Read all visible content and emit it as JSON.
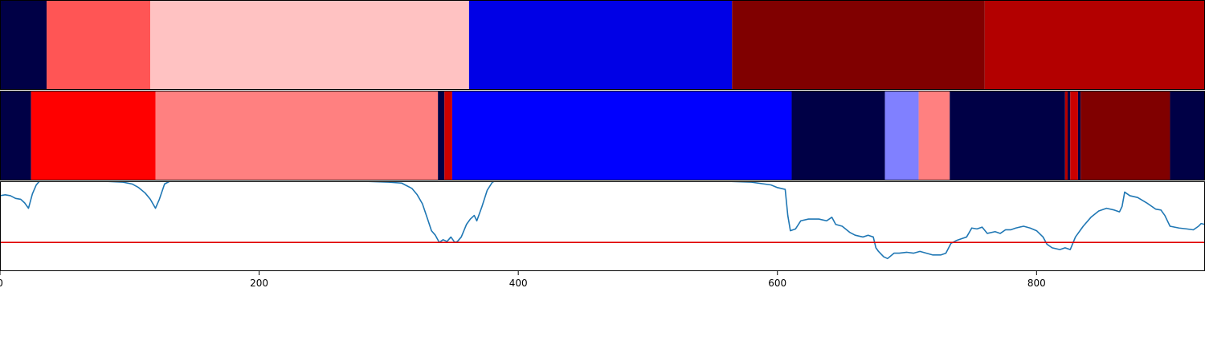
{
  "chart_data": [
    {
      "type": "heatmap",
      "colormap": "seismic",
      "segments": [
        {
          "start": 0,
          "end": 36,
          "color": "#000046"
        },
        {
          "start": 36,
          "end": 116,
          "color": "#ff5555"
        },
        {
          "start": 116,
          "end": 362,
          "color": "#ffc2c2"
        },
        {
          "start": 362,
          "end": 565,
          "color": "#0000e6"
        },
        {
          "start": 565,
          "end": 760,
          "color": "#800000"
        },
        {
          "start": 760,
          "end": 930,
          "color": "#b30000"
        }
      ]
    },
    {
      "type": "heatmap",
      "colormap": "seismic",
      "segments": [
        {
          "start": 0,
          "end": 24,
          "color": "#000046"
        },
        {
          "start": 24,
          "end": 120,
          "color": "#ff0000"
        },
        {
          "start": 120,
          "end": 338,
          "color": "#ff8080"
        },
        {
          "start": 338,
          "end": 343,
          "color": "#000046"
        },
        {
          "start": 343,
          "end": 349,
          "color": "#cc0000"
        },
        {
          "start": 349,
          "end": 611,
          "color": "#0000ff"
        },
        {
          "start": 611,
          "end": 683,
          "color": "#000046"
        },
        {
          "start": 683,
          "end": 709,
          "color": "#8080ff"
        },
        {
          "start": 709,
          "end": 733,
          "color": "#ff8080"
        },
        {
          "start": 733,
          "end": 822,
          "color": "#000046"
        },
        {
          "start": 822,
          "end": 824,
          "color": "#b30000"
        },
        {
          "start": 824,
          "end": 826,
          "color": "#000046"
        },
        {
          "start": 826,
          "end": 832,
          "color": "#cc0000"
        },
        {
          "start": 832,
          "end": 834,
          "color": "#000046"
        },
        {
          "start": 834,
          "end": 903,
          "color": "#800000"
        },
        {
          "start": 903,
          "end": 930,
          "color": "#000046"
        }
      ]
    },
    {
      "type": "line",
      "xlim": [
        0,
        930
      ],
      "ylim": [
        0,
        1
      ],
      "x_ticks": [
        0,
        200,
        400,
        600,
        800
      ],
      "threshold": {
        "value": 0.32,
        "color": "#e00000"
      },
      "series": [
        {
          "color": "#1f77b4",
          "points": [
            [
              0,
              0.84
            ],
            [
              4,
              0.85
            ],
            [
              8,
              0.84
            ],
            [
              12,
              0.81
            ],
            [
              16,
              0.8
            ],
            [
              19,
              0.76
            ],
            [
              22,
              0.7
            ],
            [
              25,
              0.86
            ],
            [
              28,
              0.96
            ],
            [
              31,
              1.01
            ],
            [
              40,
              1.02
            ],
            [
              60,
              1.01
            ],
            [
              80,
              1.0
            ],
            [
              95,
              0.99
            ],
            [
              102,
              0.97
            ],
            [
              107,
              0.93
            ],
            [
              112,
              0.87
            ],
            [
              116,
              0.8
            ],
            [
              120,
              0.7
            ],
            [
              123,
              0.8
            ],
            [
              127,
              0.97
            ],
            [
              131,
              1.0
            ],
            [
              150,
              1.01
            ],
            [
              200,
              1.01
            ],
            [
              240,
              1.0
            ],
            [
              260,
              1.0
            ],
            [
              280,
              1.0
            ],
            [
              300,
              0.99
            ],
            [
              310,
              0.98
            ],
            [
              318,
              0.92
            ],
            [
              322,
              0.85
            ],
            [
              326,
              0.75
            ],
            [
              330,
              0.58
            ],
            [
              333,
              0.45
            ],
            [
              336,
              0.4
            ],
            [
              339,
              0.32
            ],
            [
              342,
              0.35
            ],
            [
              345,
              0.33
            ],
            [
              348,
              0.38
            ],
            [
              351,
              0.32
            ],
            [
              353,
              0.33
            ],
            [
              356,
              0.38
            ],
            [
              360,
              0.52
            ],
            [
              363,
              0.58
            ],
            [
              366,
              0.62
            ],
            [
              368,
              0.56
            ],
            [
              372,
              0.72
            ],
            [
              376,
              0.9
            ],
            [
              380,
              0.99
            ],
            [
              385,
              1.02
            ],
            [
              400,
              1.01
            ],
            [
              420,
              1.0
            ],
            [
              440,
              1.01
            ],
            [
              460,
              1.02
            ],
            [
              500,
              1.01
            ],
            [
              520,
              1.0
            ],
            [
              540,
              1.0
            ],
            [
              560,
              1.0
            ],
            [
              580,
              0.99
            ],
            [
              595,
              0.96
            ],
            [
              600,
              0.93
            ],
            [
              606,
              0.91
            ],
            [
              608,
              0.62
            ],
            [
              610,
              0.45
            ],
            [
              614,
              0.47
            ],
            [
              618,
              0.56
            ],
            [
              624,
              0.58
            ],
            [
              632,
              0.58
            ],
            [
              638,
              0.56
            ],
            [
              642,
              0.6
            ],
            [
              645,
              0.52
            ],
            [
              650,
              0.5
            ],
            [
              656,
              0.43
            ],
            [
              660,
              0.4
            ],
            [
              666,
              0.38
            ],
            [
              670,
              0.4
            ],
            [
              674,
              0.38
            ],
            [
              676,
              0.26
            ],
            [
              678,
              0.22
            ],
            [
              682,
              0.16
            ],
            [
              685,
              0.14
            ],
            [
              690,
              0.2
            ],
            [
              694,
              0.2
            ],
            [
              700,
              0.21
            ],
            [
              705,
              0.2
            ],
            [
              710,
              0.22
            ],
            [
              715,
              0.2
            ],
            [
              720,
              0.18
            ],
            [
              726,
              0.18
            ],
            [
              730,
              0.2
            ],
            [
              734,
              0.31
            ],
            [
              738,
              0.34
            ],
            [
              742,
              0.36
            ],
            [
              746,
              0.38
            ],
            [
              750,
              0.48
            ],
            [
              754,
              0.47
            ],
            [
              758,
              0.49
            ],
            [
              762,
              0.42
            ],
            [
              768,
              0.44
            ],
            [
              772,
              0.42
            ],
            [
              776,
              0.46
            ],
            [
              780,
              0.46
            ],
            [
              784,
              0.48
            ],
            [
              790,
              0.5
            ],
            [
              795,
              0.48
            ],
            [
              800,
              0.45
            ],
            [
              805,
              0.38
            ],
            [
              808,
              0.3
            ],
            [
              812,
              0.26
            ],
            [
              818,
              0.24
            ],
            [
              822,
              0.26
            ],
            [
              826,
              0.24
            ],
            [
              830,
              0.38
            ],
            [
              836,
              0.5
            ],
            [
              842,
              0.6
            ],
            [
              848,
              0.67
            ],
            [
              854,
              0.7
            ],
            [
              860,
              0.68
            ],
            [
              864,
              0.66
            ],
            [
              866,
              0.72
            ],
            [
              868,
              0.88
            ],
            [
              872,
              0.84
            ],
            [
              878,
              0.82
            ],
            [
              885,
              0.76
            ],
            [
              892,
              0.69
            ],
            [
              896,
              0.68
            ],
            [
              899,
              0.62
            ],
            [
              903,
              0.5
            ],
            [
              910,
              0.48
            ],
            [
              916,
              0.47
            ],
            [
              921,
              0.46
            ],
            [
              925,
              0.5
            ],
            [
              927,
              0.53
            ],
            [
              930,
              0.52
            ]
          ]
        }
      ]
    }
  ]
}
